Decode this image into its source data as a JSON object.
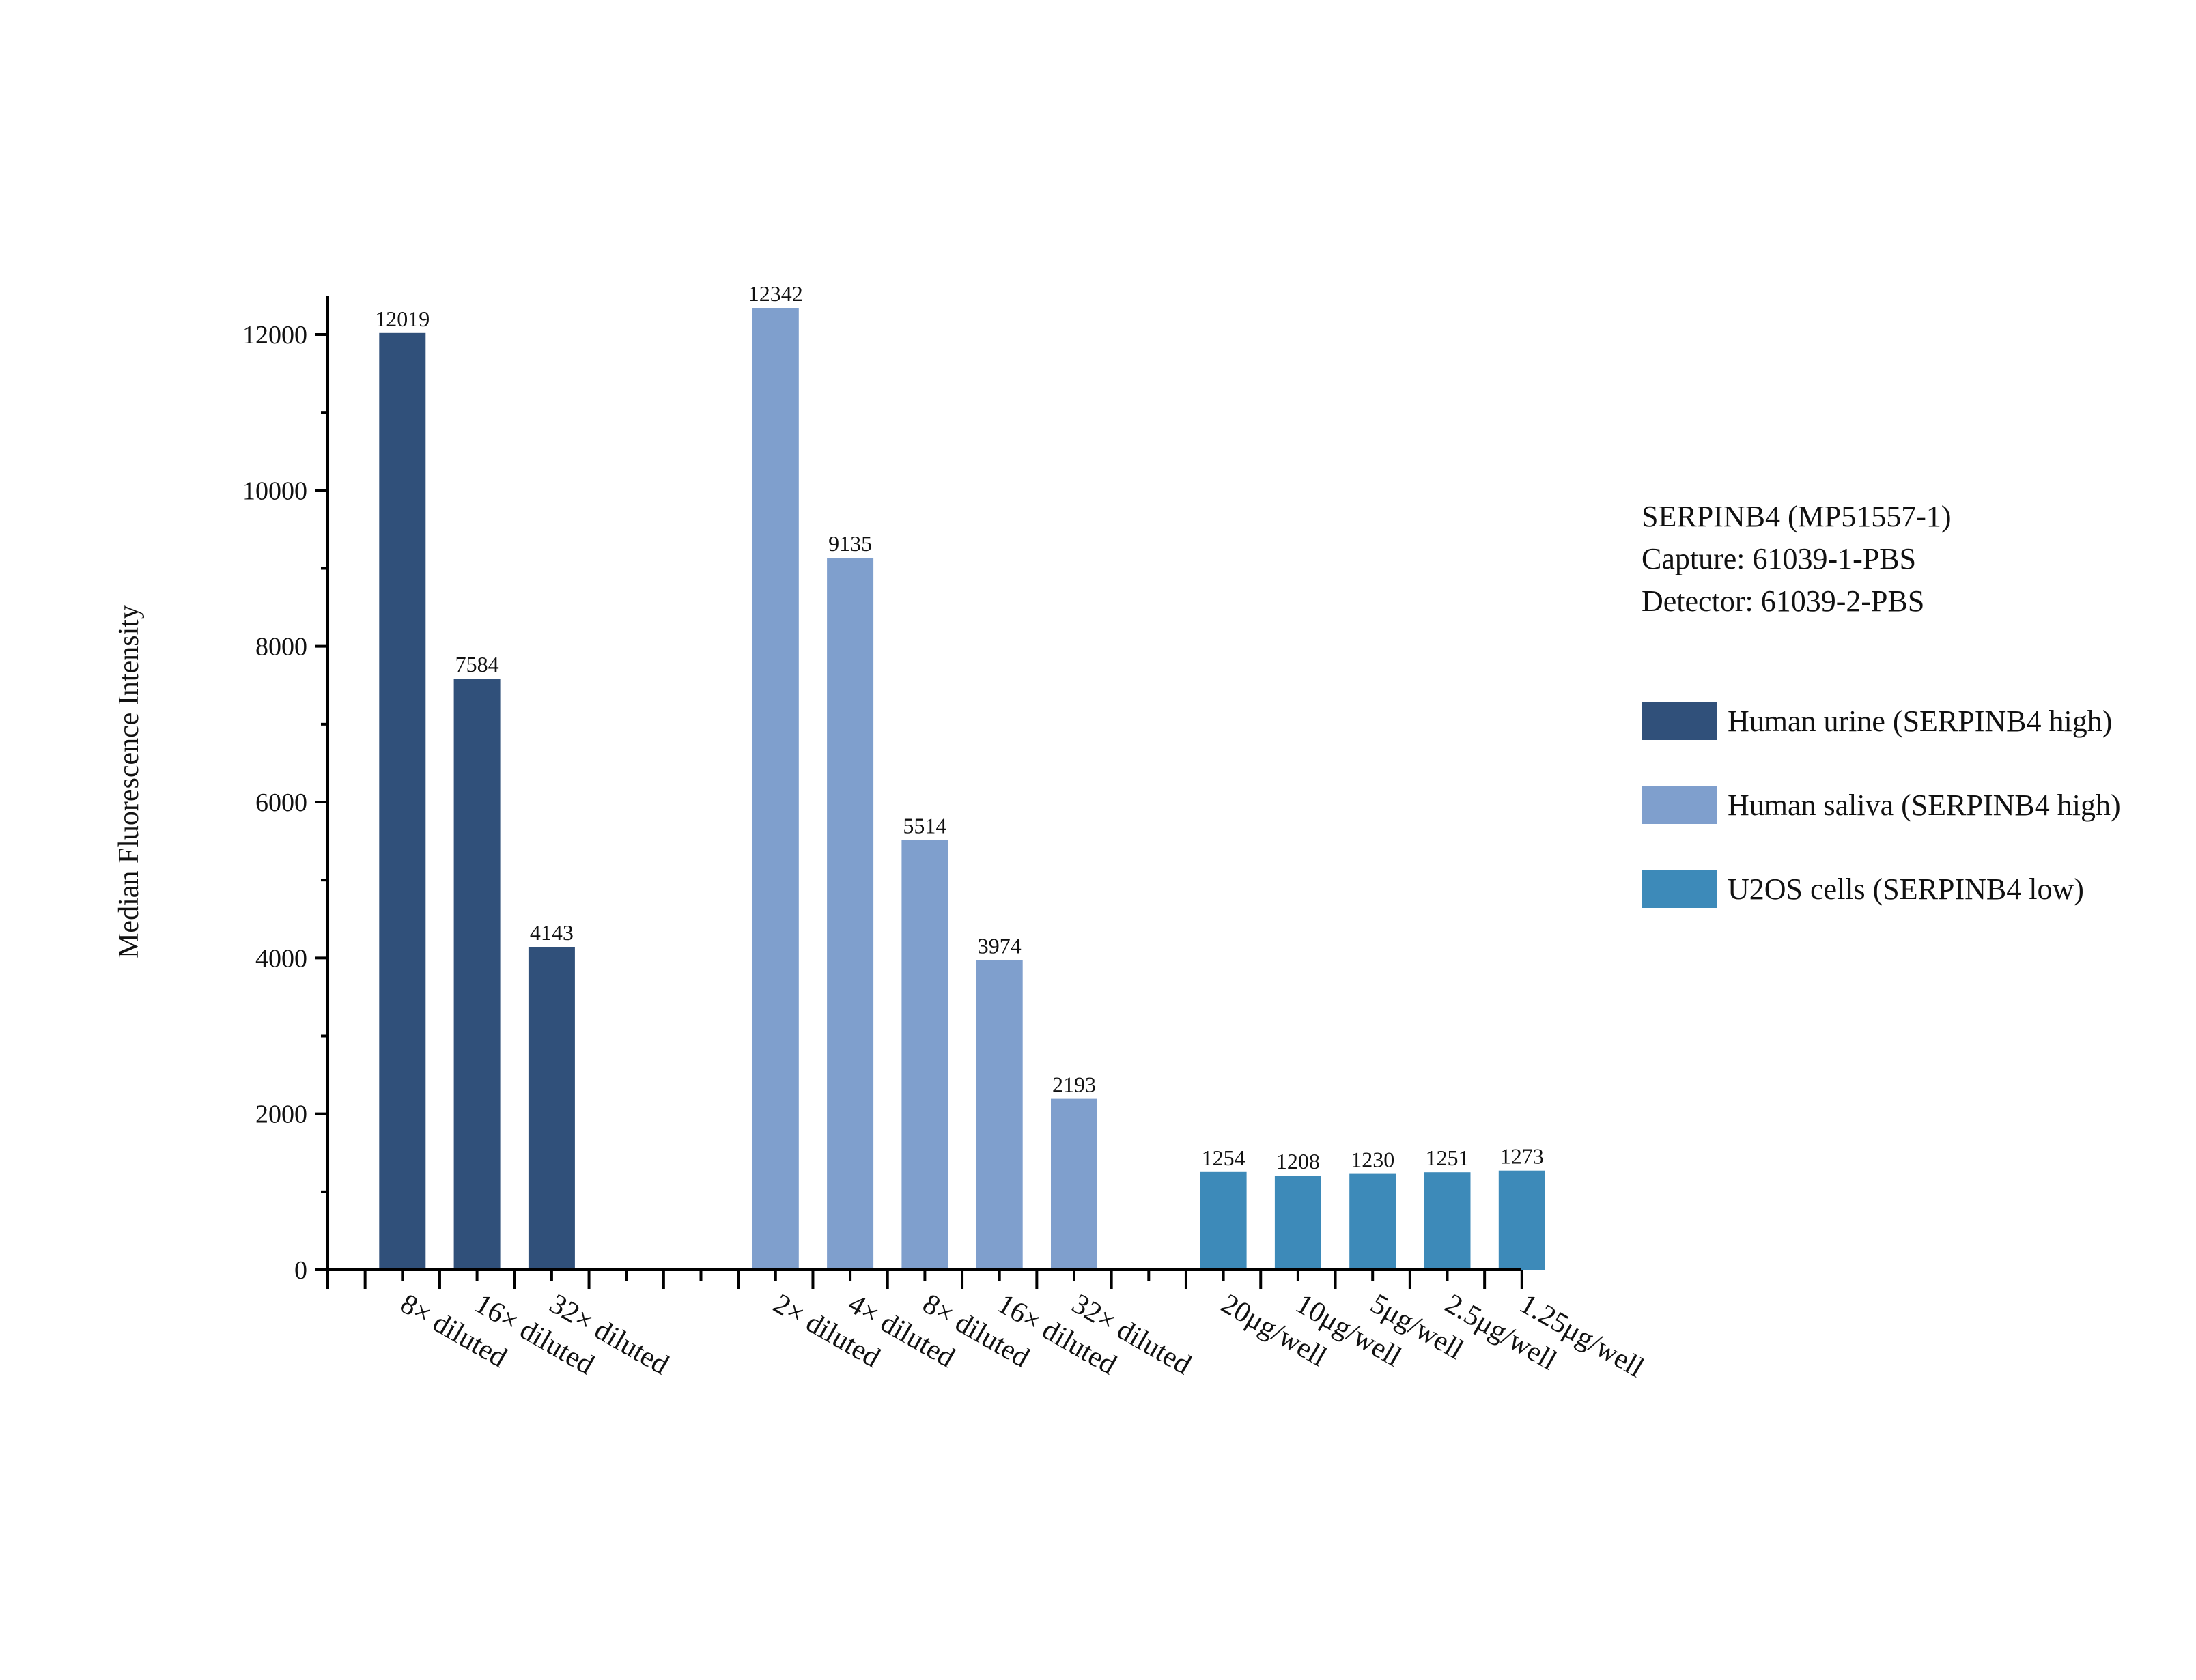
{
  "chart_data": {
    "type": "bar",
    "title": "",
    "ylabel": "Median Fluorescence Intensity",
    "xlabel": "",
    "ylim": [
      0,
      12500
    ],
    "yticks": [
      0,
      2000,
      4000,
      6000,
      8000,
      10000,
      12000
    ],
    "grid": false,
    "legend_position": "right",
    "series": [
      {
        "name": "Human urine (SERPINB4 high)",
        "color": "#30507a",
        "categories": [
          "8× diluted",
          "16× diluted",
          "32× diluted"
        ],
        "values": [
          12019,
          7584,
          4143
        ]
      },
      {
        "name": "Human saliva (SERPINB4 high)",
        "color": "#7f9fcd",
        "categories": [
          "2× diluted",
          "4× diluted",
          "8× diluted",
          "16× diluted",
          "32× diluted"
        ],
        "values": [
          12342,
          9135,
          5514,
          3974,
          2193
        ]
      },
      {
        "name": "U2OS cells (SERPINB4 low)",
        "color": "#3d8ab9",
        "categories": [
          "20μg/well",
          "10μg/well",
          "5μg/well",
          "2.5μg/well",
          "1.25μg/well"
        ],
        "values": [
          1254,
          1208,
          1230,
          1251,
          1273
        ]
      }
    ]
  },
  "legend": {
    "header_lines": [
      "SERPINB4 (MP51557-1)",
      "Capture: 61039-1-PBS",
      "Detector: 61039-2-PBS"
    ]
  }
}
